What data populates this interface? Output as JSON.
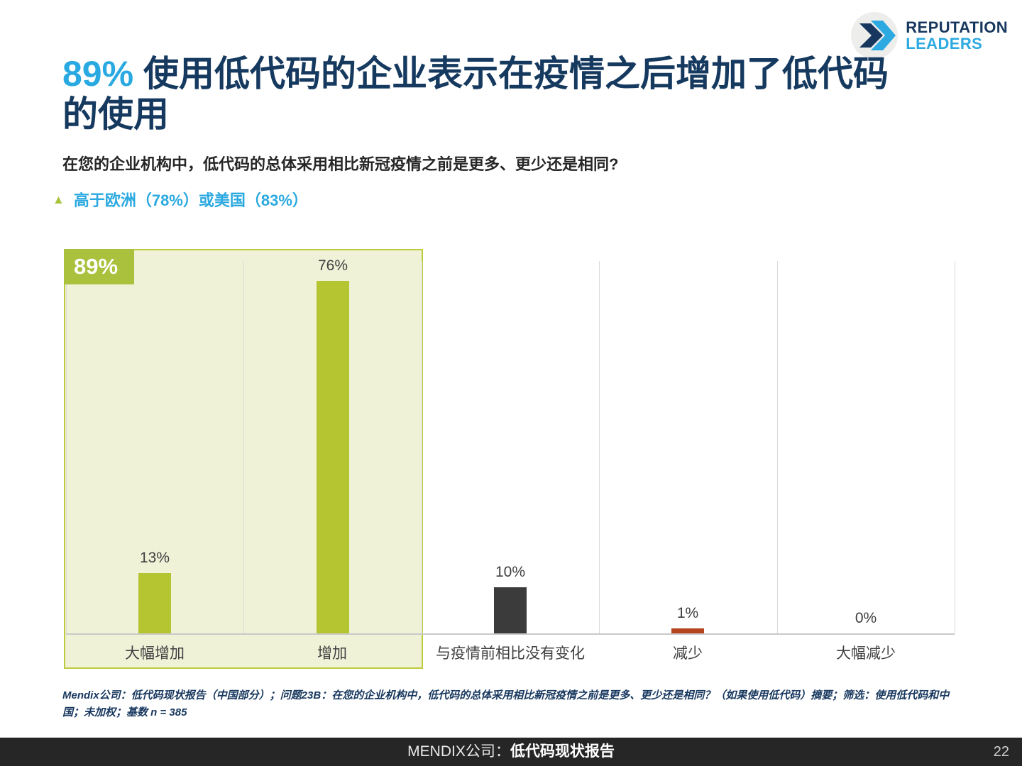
{
  "logo": {
    "line1": "REPUTATION",
    "line2": "LEADERS"
  },
  "title": {
    "highlight": "89%",
    "text": " 使用低代码的企业表示在疫情之后增加了低代码的使用"
  },
  "subtitle": "在您的企业机构中，低代码的总体采用相比新冠疫情之前是更多、更少还是相同?",
  "callout": {
    "marker": "▲",
    "text": "高于欧洲（78%）或美国（83%）"
  },
  "chart_data": {
    "type": "bar",
    "categories": [
      "大幅增加",
      "增加",
      "与疫情前相比没有变化",
      "减少",
      "大幅减少"
    ],
    "values": [
      13,
      76,
      10,
      1,
      0
    ],
    "value_labels": [
      "13%",
      "76%",
      "10%",
      "1%",
      "0%"
    ],
    "bar_colors": [
      "#B5C431",
      "#B5C431",
      "#3B3B3B",
      "#B5431E",
      "#B5431E"
    ],
    "title": "89% 使用低代码的企业表示在疫情之后增加了低代码的使用",
    "xlabel": "",
    "ylabel": "",
    "ylim": [
      0,
      80
    ],
    "grid": "vertical-category-separators",
    "legend": "none",
    "highlight": {
      "label": "89%",
      "categories": [
        "大幅增加",
        "增加"
      ],
      "note": "高于欧洲（78%）或美国（83%）"
    }
  },
  "footnote": "Mendix公司：低代码现状报告（中国部分）；问题23B：在您的企业机构中，低代码的总体采用相比新冠疫情之前是更多、更少还是相同？（如果使用低代码）摘要；筛选：使用低代码和中国；未加权；基数 n = 385",
  "footer": {
    "brand": "MENDIX公司：",
    "title": "低代码现状报告",
    "page": "22"
  },
  "colors": {
    "accent_blue": "#29A9E1",
    "dark_navy": "#163A5F",
    "bar_green": "#B5C431",
    "bar_dark": "#3B3B3B",
    "bar_orange": "#B5431E",
    "highlight_bg": "#F0F2D8",
    "highlight_border": "#BDCB3F",
    "footer_bg": "#262626"
  }
}
